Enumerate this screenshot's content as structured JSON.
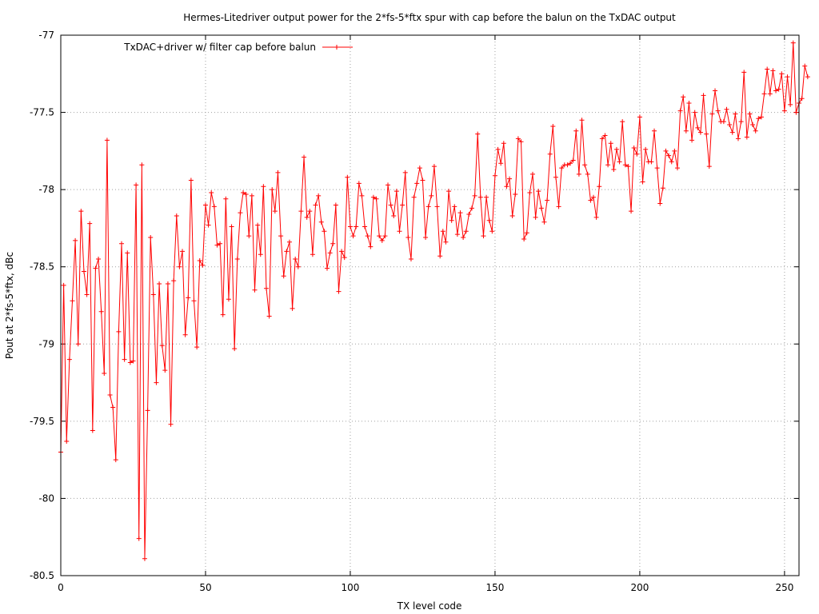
{
  "chart_data": {
    "type": "line",
    "title": "Hermes-Litedriver  output power for the 2*fs-5*ftx spur with cap before the balun on the TxDAC output",
    "xlabel": "TX level code",
    "ylabel": "Pout at 2*fs-5*ftx, dBc",
    "xlim": [
      0,
      255
    ],
    "ylim": [
      -80.5,
      -77
    ],
    "grid": true,
    "legend_position": "top-left",
    "x_ticks": [
      "0",
      "50",
      "100",
      "150",
      "200",
      "250"
    ],
    "y_ticks": [
      "-77",
      "-77.5",
      "-78",
      "-78.5",
      "-79",
      "-79.5",
      "-80",
      "-80.5"
    ],
    "x_tick_values": [
      0,
      50,
      100,
      150,
      200,
      250
    ],
    "y_tick_values": [
      -77,
      -77.5,
      -78,
      -78.5,
      -79,
      -79.5,
      -80,
      -80.5
    ],
    "series": [
      {
        "name": "TxDAC+driver w/ filter cap before balun",
        "color": "#ff0000",
        "marker": "plus",
        "x_start": 0,
        "x_step": 1,
        "values": [
          -79.7,
          -78.62,
          -79.63,
          -79.1,
          -78.72,
          -78.33,
          -79.0,
          -78.14,
          -78.53,
          -78.68,
          -78.22,
          -79.56,
          -78.51,
          -78.45,
          -78.79,
          -79.19,
          -77.68,
          -79.33,
          -79.41,
          -79.75,
          -78.92,
          -78.35,
          -79.1,
          -78.41,
          -79.12,
          -79.11,
          -77.97,
          -80.26,
          -77.84,
          -80.39,
          -79.43,
          -78.31,
          -78.68,
          -79.25,
          -78.61,
          -79.01,
          -79.17,
          -78.61,
          -79.52,
          -78.59,
          -78.17,
          -78.5,
          -78.4,
          -78.94,
          -78.7,
          -77.94,
          -78.72,
          -79.02,
          -78.46,
          -78.49,
          -78.1,
          -78.23,
          -78.02,
          -78.11,
          -78.36,
          -78.35,
          -78.81,
          -78.06,
          -78.71,
          -78.24,
          -79.03,
          -78.45,
          -78.15,
          -78.02,
          -78.03,
          -78.3,
          -78.04,
          -78.65,
          -78.23,
          -78.42,
          -77.98,
          -78.64,
          -78.82,
          -78.0,
          -78.14,
          -77.89,
          -78.3,
          -78.56,
          -78.4,
          -78.34,
          -78.77,
          -78.45,
          -78.5,
          -78.14,
          -77.79,
          -78.18,
          -78.14,
          -78.42,
          -78.1,
          -78.04,
          -78.21,
          -78.27,
          -78.51,
          -78.41,
          -78.35,
          -78.1,
          -78.66,
          -78.4,
          -78.44,
          -77.92,
          -78.24,
          -78.3,
          -78.24,
          -77.96,
          -78.04,
          -78.24,
          -78.3,
          -78.37,
          -78.05,
          -78.06,
          -78.3,
          -78.33,
          -78.3,
          -77.97,
          -78.1,
          -78.17,
          -78.01,
          -78.27,
          -78.1,
          -77.89,
          -78.31,
          -78.45,
          -78.05,
          -77.96,
          -77.86,
          -77.94,
          -78.31,
          -78.11,
          -78.04,
          -77.85,
          -78.11,
          -78.43,
          -78.27,
          -78.34,
          -78.01,
          -78.2,
          -78.11,
          -78.29,
          -78.15,
          -78.31,
          -78.27,
          -78.16,
          -78.12,
          -78.04,
          -77.64,
          -78.05,
          -78.3,
          -78.05,
          -78.2,
          -78.27,
          -77.91,
          -77.74,
          -77.83,
          -77.7,
          -77.98,
          -77.93,
          -78.17,
          -78.03,
          -77.67,
          -77.69,
          -78.32,
          -78.28,
          -78.02,
          -77.9,
          -78.18,
          -78.01,
          -78.12,
          -78.21,
          -78.07,
          -77.77,
          -77.59,
          -77.92,
          -78.11,
          -77.86,
          -77.84,
          -77.84,
          -77.83,
          -77.81,
          -77.62,
          -77.9,
          -77.55,
          -77.84,
          -77.9,
          -78.07,
          -78.05,
          -78.18,
          -77.98,
          -77.67,
          -77.65,
          -77.84,
          -77.7,
          -77.87,
          -77.74,
          -77.82,
          -77.56,
          -77.84,
          -77.85,
          -78.14,
          -77.73,
          -77.77,
          -77.53,
          -77.95,
          -77.74,
          -77.82,
          -77.82,
          -77.62,
          -77.86,
          -78.09,
          -77.99,
          -77.75,
          -77.78,
          -77.82,
          -77.75,
          -77.86,
          -77.49,
          -77.4,
          -77.62,
          -77.44,
          -77.68,
          -77.5,
          -77.6,
          -77.63,
          -77.39,
          -77.64,
          -77.85,
          -77.51,
          -77.36,
          -77.49,
          -77.56,
          -77.56,
          -77.48,
          -77.58,
          -77.63,
          -77.51,
          -77.67,
          -77.56,
          -77.24,
          -77.66,
          -77.51,
          -77.58,
          -77.62,
          -77.54,
          -77.53,
          -77.38,
          -77.22,
          -77.38,
          -77.23,
          -77.36,
          -77.35,
          -77.25,
          -77.49,
          -77.27,
          -77.45,
          -77.05,
          -77.5,
          -77.44,
          -77.41,
          -77.2,
          -77.27
        ]
      }
    ]
  }
}
